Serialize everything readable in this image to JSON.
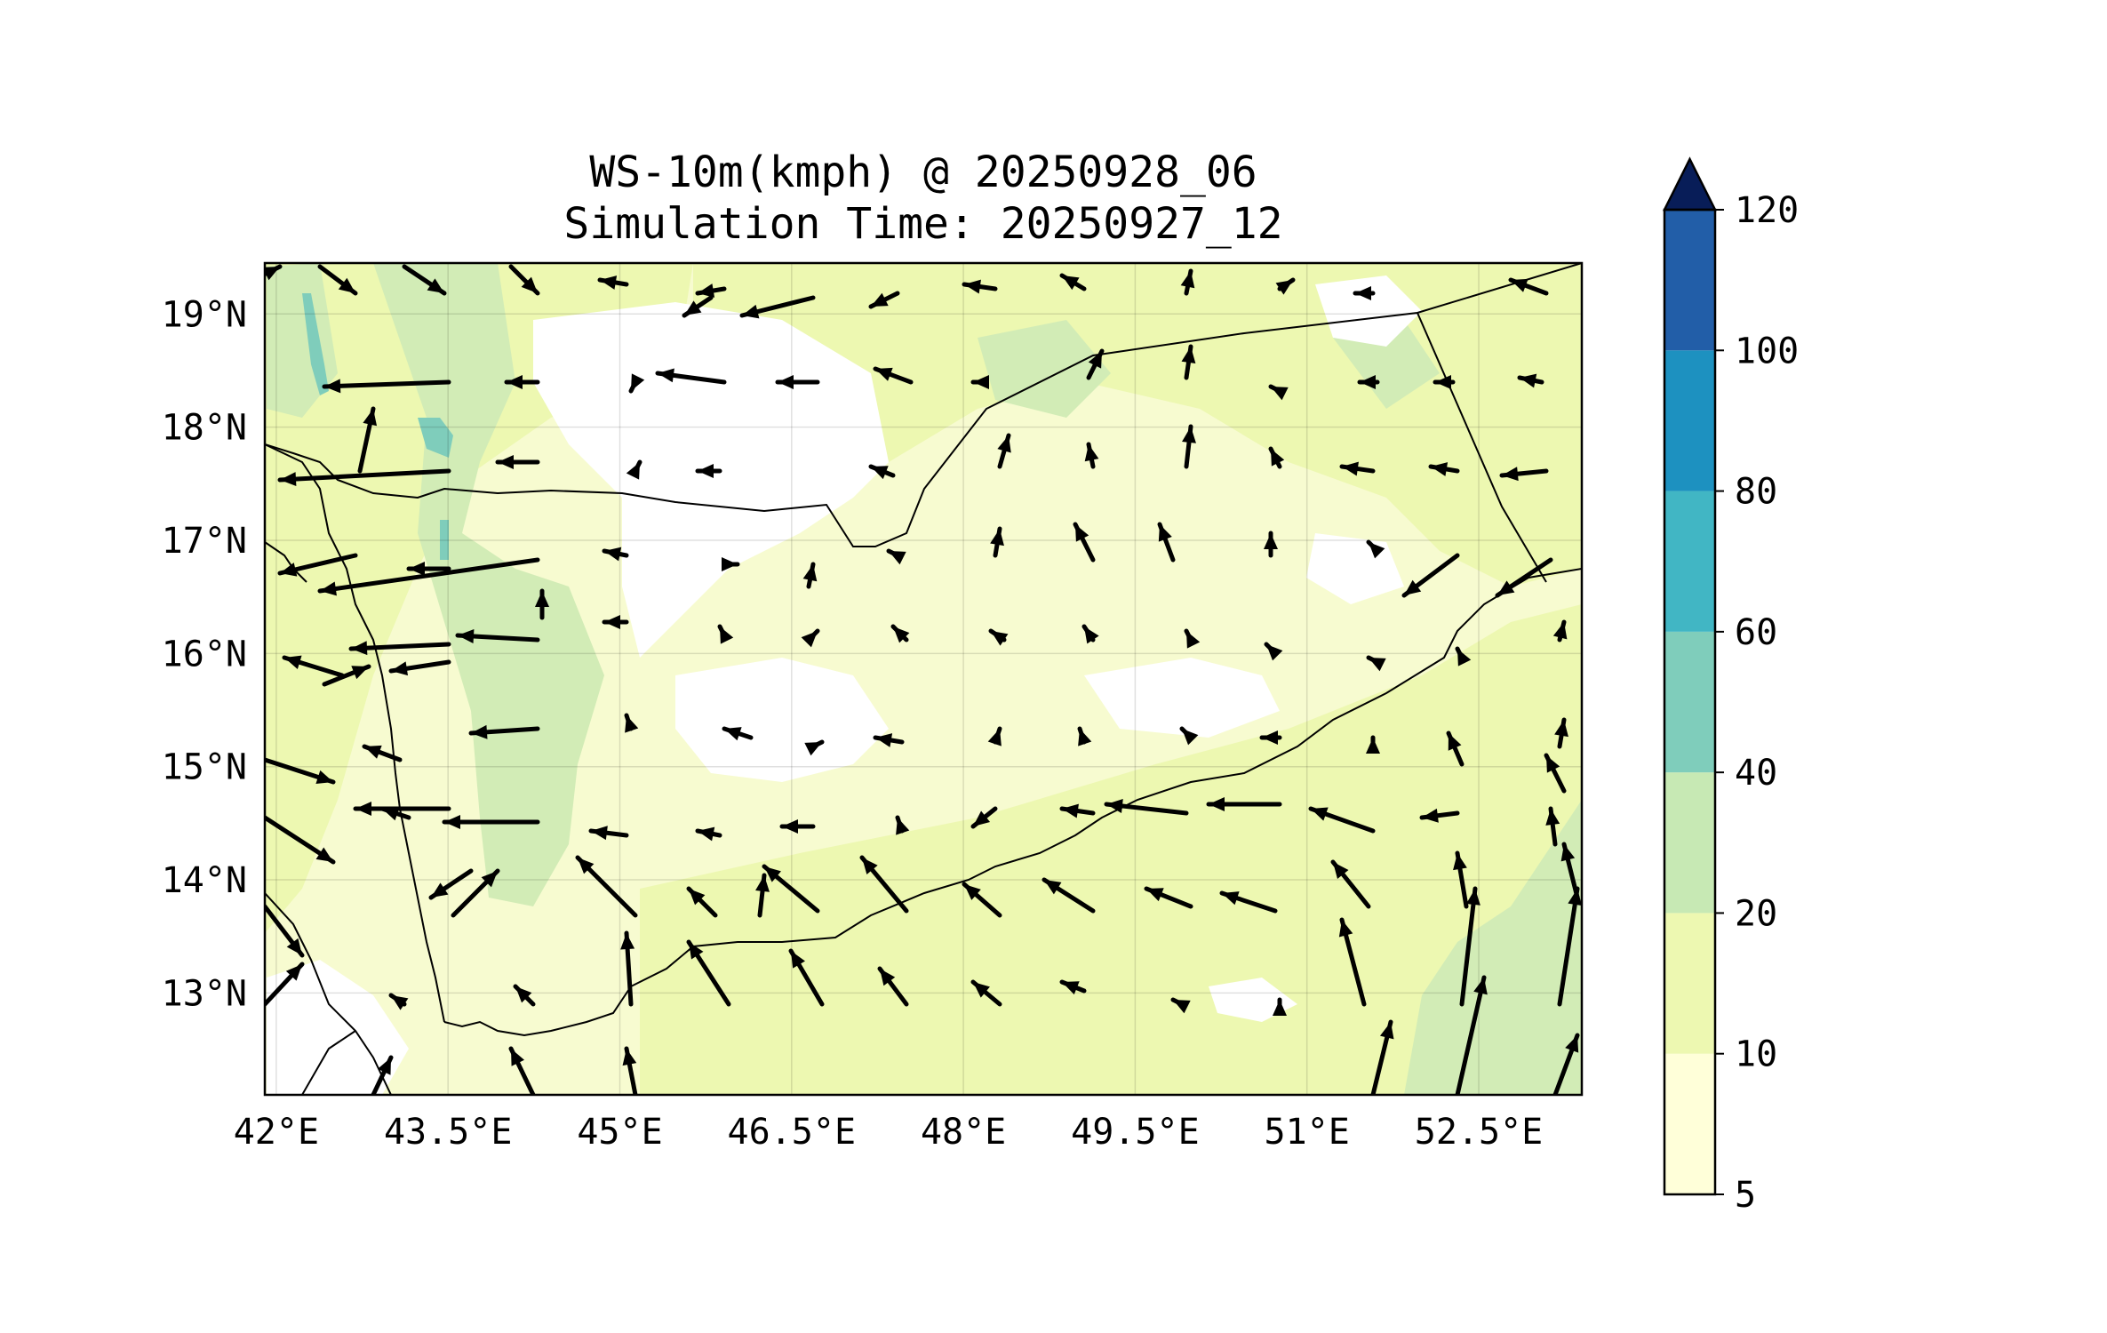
{
  "title": {
    "line1": "WS-10m(kmph) @ 20250928_06",
    "line2": "Simulation Time: 20250927_12"
  },
  "chart_data": {
    "type": "heatmap",
    "variable": "10 m wind speed (kmph) with wind vectors",
    "xlim": [
      41.9,
      53.4
    ],
    "ylim": [
      12.1,
      19.45
    ],
    "x_tick_labels": [
      "42°E",
      "43.5°E",
      "45°E",
      "46.5°E",
      "48°E",
      "49.5°E",
      "51°E",
      "52.5°E"
    ],
    "x_ticks": [
      42,
      43.5,
      45,
      46.5,
      48,
      49.5,
      51,
      52.5
    ],
    "y_tick_labels": [
      "19°N",
      "18°N",
      "17°N",
      "16°N",
      "15°N",
      "14°N",
      "13°N"
    ],
    "y_ticks": [
      19,
      18,
      17,
      16,
      15,
      14,
      13
    ],
    "grid": true,
    "colorbar": {
      "levels": [
        "5",
        "10",
        "20",
        "40",
        "60",
        "80",
        "100",
        "120"
      ],
      "colors": [
        "#ffffd9",
        "#edf8b1",
        "#c7e9b4",
        "#7fcdbb",
        "#41b6c4",
        "#1d91c0",
        "#225ea8",
        "#0c2c84"
      ],
      "extend_color": "#081d58",
      "extend": "max"
    },
    "field_colors": {
      "land_low": "#ffffff",
      "speed_5_10": "#f7fbd0",
      "speed_10_20": "#edf8b1",
      "speed_20_40": "#d2ecb6",
      "speed_40_60": "#7fcdbb"
    }
  }
}
